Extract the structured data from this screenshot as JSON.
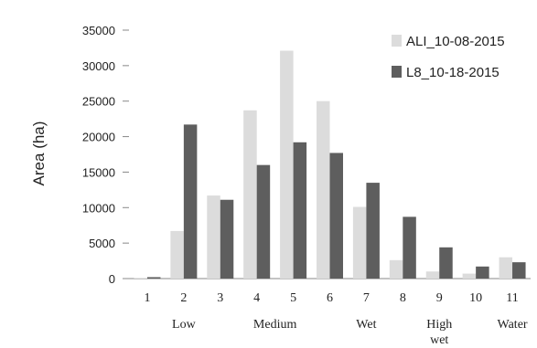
{
  "chart_data": {
    "type": "bar",
    "ylabel": "Area (ha)",
    "xlabel": "",
    "ylim": [
      0,
      35000
    ],
    "yticks": [
      0,
      5000,
      10000,
      15000,
      20000,
      25000,
      30000,
      35000
    ],
    "grid": false,
    "legend_position": "top-right",
    "categories": [
      "1",
      "2",
      "3",
      "4",
      "5",
      "6",
      "7",
      "8",
      "9",
      "10",
      "11"
    ],
    "series": [
      {
        "name": "ALI_10-08-2015",
        "color": "#dcdcdc",
        "values": [
          100,
          6700,
          11700,
          23700,
          32100,
          25000,
          10100,
          2600,
          1000,
          700,
          3000
        ]
      },
      {
        "name": "L8_10-18-2015",
        "color": "#5e5e5e",
        "values": [
          200,
          21700,
          11100,
          16000,
          19200,
          17700,
          13500,
          8700,
          4400,
          1700,
          2300
        ]
      }
    ],
    "group_labels": [
      {
        "label": "Low",
        "category": "2"
      },
      {
        "label": "Medium",
        "category": "4.5"
      },
      {
        "label": "Wet",
        "category": "7"
      },
      {
        "label": "High",
        "label2": "wet",
        "category": "9"
      },
      {
        "label": "Water",
        "category": "11"
      }
    ]
  }
}
